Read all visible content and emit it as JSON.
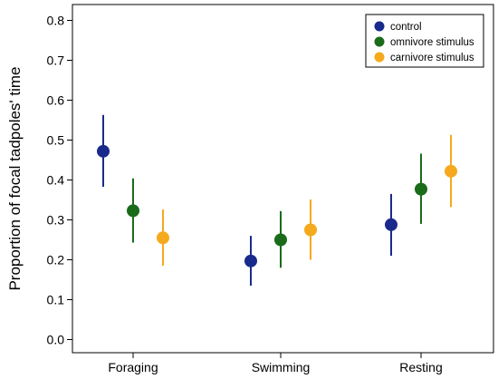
{
  "chart_data": {
    "type": "scatter",
    "title": "",
    "xlabel": "",
    "ylabel": "Proportion of focal tadpoles' time",
    "categories": [
      "Foraging",
      "Swimming",
      "Resting"
    ],
    "ylim": [
      0,
      0.8
    ],
    "yticks": [
      "0.0",
      "0.1",
      "0.2",
      "0.3",
      "0.4",
      "0.5",
      "0.6",
      "0.7",
      "0.8"
    ],
    "grid": false,
    "legend_position": "top-right",
    "series": [
      {
        "name": "control",
        "color": "#1a2a8c",
        "values": [
          0.472,
          0.197,
          0.288
        ],
        "lower": [
          0.383,
          0.135,
          0.21
        ],
        "upper": [
          0.563,
          0.26,
          0.365
        ]
      },
      {
        "name": "omnivore stimulus",
        "color": "#1a6b1a",
        "values": [
          0.323,
          0.25,
          0.377
        ],
        "lower": [
          0.243,
          0.18,
          0.29
        ],
        "upper": [
          0.404,
          0.322,
          0.466
        ]
      },
      {
        "name": "carnivore stimulus",
        "color": "#f5a91c",
        "values": [
          0.255,
          0.275,
          0.422
        ],
        "lower": [
          0.185,
          0.2,
          0.332
        ],
        "upper": [
          0.326,
          0.351,
          0.513
        ]
      }
    ]
  }
}
